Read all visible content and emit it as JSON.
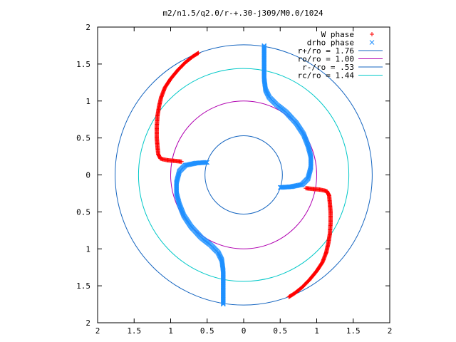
{
  "chart_data": {
    "type": "scatter",
    "title": "m2/n1.5/q2.0/r-+.30-j309/M0.0/1024",
    "xlim": [
      2,
      -2
    ],
    "ylim": [
      -2,
      2
    ],
    "x_tick_labels": [
      "2",
      "1.5",
      "1",
      "0.5",
      "0",
      "0.5",
      "1",
      "1.5",
      "2"
    ],
    "y_tick_labels": [
      "2",
      "1.5",
      "1",
      "0.5",
      "0",
      "0.5",
      "1",
      "1.5",
      "2"
    ],
    "grid": false,
    "legend_position": "top-right",
    "series": [
      {
        "name": "W phase",
        "marker": "plus",
        "color": "#ff0000",
        "arm1": [
          [
            0.62,
            1.65
          ],
          [
            0.7,
            1.6
          ],
          [
            0.8,
            1.52
          ],
          [
            0.9,
            1.42
          ],
          [
            1.0,
            1.3
          ],
          [
            1.08,
            1.18
          ],
          [
            1.13,
            1.05
          ],
          [
            1.16,
            0.92
          ],
          [
            1.18,
            0.8
          ],
          [
            1.19,
            0.65
          ],
          [
            1.19,
            0.5
          ],
          [
            1.18,
            0.38
          ],
          [
            1.17,
            0.28
          ],
          [
            1.14,
            0.22
          ],
          [
            1.05,
            0.2
          ],
          [
            0.95,
            0.19
          ],
          [
            0.85,
            0.18
          ]
        ],
        "arm2": [
          [
            -0.62,
            -1.65
          ],
          [
            -0.7,
            -1.6
          ],
          [
            -0.8,
            -1.52
          ],
          [
            -0.9,
            -1.42
          ],
          [
            -1.0,
            -1.3
          ],
          [
            -1.08,
            -1.18
          ],
          [
            -1.13,
            -1.05
          ],
          [
            -1.16,
            -0.92
          ],
          [
            -1.18,
            -0.8
          ],
          [
            -1.19,
            -0.65
          ],
          [
            -1.19,
            -0.5
          ],
          [
            -1.18,
            -0.38
          ],
          [
            -1.17,
            -0.28
          ],
          [
            -1.14,
            -0.22
          ],
          [
            -1.05,
            -0.2
          ],
          [
            -0.95,
            -0.19
          ],
          [
            -0.85,
            -0.18
          ]
        ]
      },
      {
        "name": "drho phase",
        "marker": "cross",
        "color": "#1e90ff",
        "arm1": [
          [
            -0.28,
            1.75
          ],
          [
            -0.28,
            1.6
          ],
          [
            -0.28,
            1.45
          ],
          [
            -0.28,
            1.3
          ],
          [
            -0.3,
            1.15
          ],
          [
            -0.35,
            1.05
          ],
          [
            -0.45,
            0.95
          ],
          [
            -0.58,
            0.85
          ],
          [
            -0.72,
            0.7
          ],
          [
            -0.82,
            0.55
          ],
          [
            -0.88,
            0.4
          ],
          [
            -0.92,
            0.25
          ],
          [
            -0.92,
            0.1
          ],
          [
            -0.88,
            -0.05
          ],
          [
            -0.8,
            -0.13
          ],
          [
            -0.65,
            -0.16
          ],
          [
            -0.5,
            -0.17
          ]
        ],
        "arm2": [
          [
            0.28,
            -1.75
          ],
          [
            0.28,
            -1.6
          ],
          [
            0.28,
            -1.45
          ],
          [
            0.28,
            -1.3
          ],
          [
            0.3,
            -1.15
          ],
          [
            0.35,
            -1.05
          ],
          [
            0.45,
            -0.95
          ],
          [
            0.58,
            -0.85
          ],
          [
            0.72,
            -0.7
          ],
          [
            0.82,
            -0.55
          ],
          [
            0.88,
            -0.4
          ],
          [
            0.92,
            -0.25
          ],
          [
            0.92,
            -0.1
          ],
          [
            0.88,
            0.05
          ],
          [
            0.8,
            0.13
          ],
          [
            0.65,
            0.16
          ],
          [
            0.5,
            0.17
          ]
        ]
      }
    ],
    "circles": [
      {
        "name": "r+/ro = 1.76",
        "radius": 1.76,
        "color": "#1565c0"
      },
      {
        "name": "ro/ro = 1.00",
        "radius": 1.0,
        "color": "#b000b0"
      },
      {
        "name": "r-/ro = .53",
        "radius": 0.53,
        "color": "#1565c0"
      },
      {
        "name": "rc/ro = 1.44",
        "radius": 1.44,
        "color": "#00c8c8"
      }
    ]
  }
}
